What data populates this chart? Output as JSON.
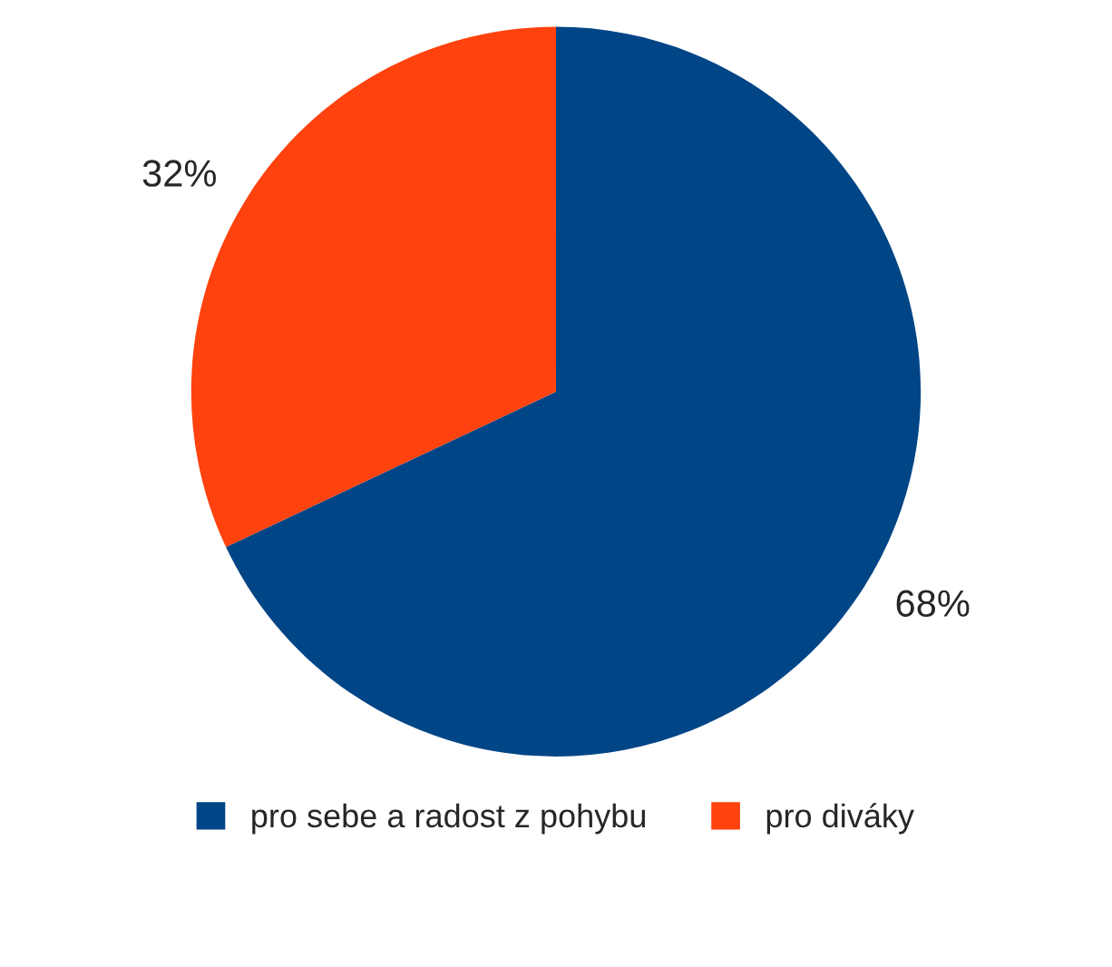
{
  "chart_data": {
    "type": "pie",
    "categories": [
      "pro sebe a radost z pohybu",
      "pro diváky"
    ],
    "values": [
      68,
      32
    ],
    "colors": [
      "#004586",
      "#ff420e"
    ],
    "value_labels": [
      "68%",
      "32%"
    ],
    "legend": "bottom"
  }
}
